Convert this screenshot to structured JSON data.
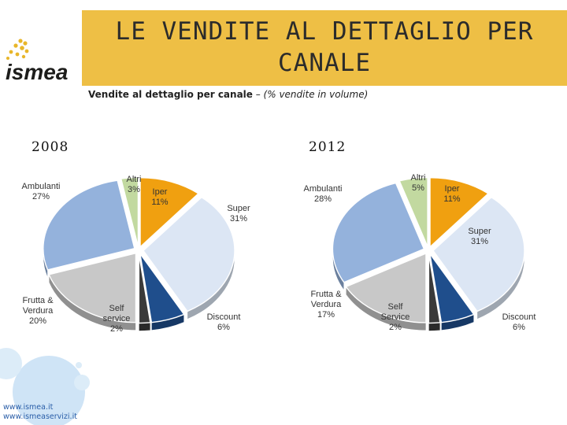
{
  "slide": {
    "title": "LE VENDITE AL DETTAGLIO PER\nCANALE",
    "subtitle_bold": "Vendite al dettaglio per canale",
    "subtitle_italic": " – (% vendite in volume)",
    "logo_text": "ismea",
    "footer_links": [
      "www.ismea.it",
      "www.ismeaservizi.it"
    ]
  },
  "colors": {
    "title_band": "#eebf45",
    "Iper": "#f0a010",
    "Super": "#dce6f4",
    "Discount": "#1f4e8c",
    "Self service": "#3a3a3a",
    "Frutta & Verdura": "#c8c8c8",
    "Ambulanti": "#94b2dc",
    "Altri": "#c2d9a0"
  },
  "chart_data": [
    {
      "type": "pie",
      "title": "2008",
      "categories": [
        "Iper",
        "Super",
        "Discount",
        "Self service",
        "Frutta & Verdura",
        "Ambulanti",
        "Altri"
      ],
      "values": [
        11,
        31,
        6,
        2,
        20,
        27,
        3
      ],
      "labels": [
        {
          "name": "Iper",
          "value": "11%"
        },
        {
          "name": "Super",
          "value": "31%"
        },
        {
          "name": "Discount",
          "value": "6%"
        },
        {
          "name": "Self\nservice",
          "value": "2%"
        },
        {
          "name": "Frutta &\nVerdura",
          "value": "20%"
        },
        {
          "name": "Ambulanti",
          "value": "27%"
        },
        {
          "name": "Altri",
          "value": "3%"
        }
      ]
    },
    {
      "type": "pie",
      "title": "2012",
      "categories": [
        "Iper",
        "Super",
        "Discount",
        "Self service",
        "Frutta & Verdura",
        "Ambulanti",
        "Altri"
      ],
      "values": [
        11,
        31,
        6,
        2,
        17,
        28,
        5
      ],
      "labels": [
        {
          "name": "Iper",
          "value": "11%"
        },
        {
          "name": "Super",
          "value": "31%"
        },
        {
          "name": "Discount",
          "value": "6%"
        },
        {
          "name": "Self\nService",
          "value": "2%"
        },
        {
          "name": "Frutta &\nVerdura",
          "value": "17%"
        },
        {
          "name": "Ambulanti",
          "value": "28%"
        },
        {
          "name": "Altri",
          "value": "5%"
        }
      ]
    }
  ]
}
